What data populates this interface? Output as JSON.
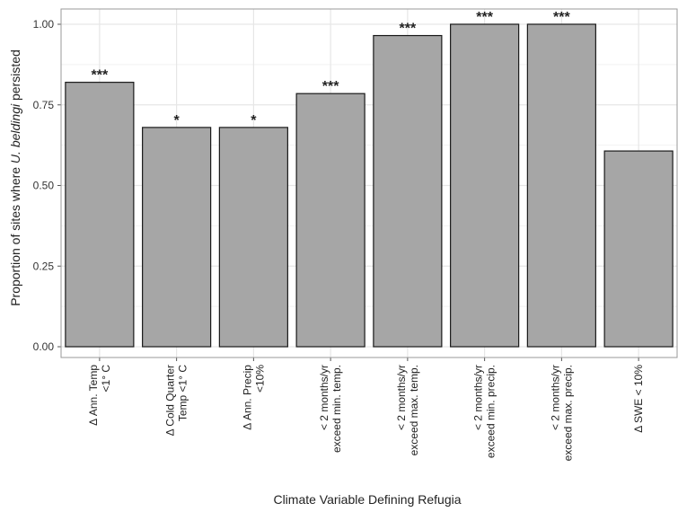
{
  "chart_data": {
    "type": "bar",
    "categories": [
      [
        "Δ Ann. Temp",
        "<1° C"
      ],
      [
        "Δ Cold Quarter",
        "Temp <1° C"
      ],
      [
        "Δ Ann. Precip",
        "<10%"
      ],
      [
        "< 2 months/yr",
        "exceed min. temp."
      ],
      [
        "< 2 months/yr",
        "exceed max. temp."
      ],
      [
        "< 2 months/yr",
        "exceed min. precip."
      ],
      [
        "< 2 months/yr",
        "exceed max. precip."
      ],
      [
        "Δ SWE < 10%"
      ]
    ],
    "values": [
      0.82,
      0.68,
      0.68,
      0.785,
      0.965,
      1.0,
      1.0,
      0.607
    ],
    "significance": [
      "***",
      "*",
      "*",
      "***",
      "***",
      "***",
      "***",
      ""
    ],
    "xlabel": "Climate Variable Defining Refugia",
    "ylabel": {
      "prefix": "Proportion of sites where ",
      "italic": "U. beldingi",
      "suffix": " persisted"
    },
    "yticks": [
      "0.00",
      "0.25",
      "0.50",
      "0.75",
      "1.00"
    ],
    "ylim": [
      0,
      1.05
    ],
    "grid": true,
    "legend": "none",
    "colors": {
      "bar_fill": "#a6a6a6",
      "bar_stroke": "#1a1a1a",
      "grid_major": "#e6e6e6",
      "grid_minor": "#f2f2f2",
      "panel_border": "#9a9a9a"
    }
  }
}
